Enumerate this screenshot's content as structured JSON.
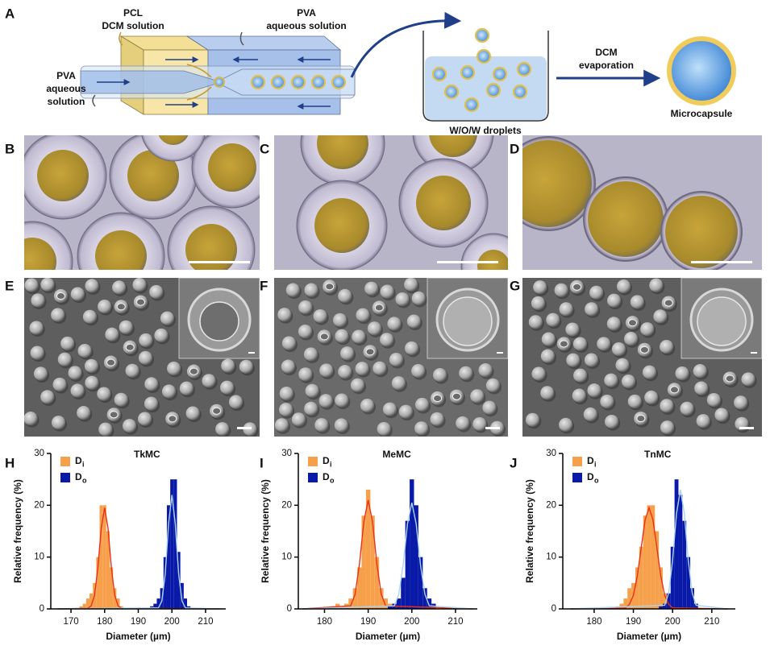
{
  "panel_labels": [
    "A",
    "B",
    "C",
    "D",
    "E",
    "F",
    "G",
    "H",
    "I",
    "J"
  ],
  "schematic": {
    "pcl_label": [
      "PCL",
      "DCM solution"
    ],
    "pva_top": [
      "PVA",
      "aqueous solution"
    ],
    "pva_left": [
      "PVA",
      "aqueous",
      "solution"
    ],
    "droplets": "W/O/W  droplets",
    "evaporation": [
      "DCM",
      "evaporation"
    ],
    "product": "Microcapsule"
  },
  "chart_data": [
    {
      "type": "histogram",
      "title": "TkMC",
      "x_label": "Diameter (µm)",
      "y_label": "Relative frequency (%)",
      "xlim": [
        164,
        216
      ],
      "xticks": [
        170,
        180,
        190,
        200,
        210
      ],
      "ylim": [
        0,
        30
      ],
      "yticks": [
        0,
        10,
        20,
        30
      ],
      "series": [
        {
          "name": "D",
          "name_sub": "i",
          "color": "#f7a04b",
          "bins": [
            172.5,
            173.5,
            174.5,
            175.5,
            176.5,
            177.5,
            178.5,
            179.5,
            180.5,
            181.5,
            182.5,
            183.5,
            184.5,
            185.5
          ],
          "values": [
            0.5,
            1,
            2,
            3,
            5,
            10,
            20,
            20,
            15,
            8,
            4,
            2,
            0.5
          ],
          "fit": {
            "color": "#e8311a",
            "x": [
              166,
              175,
              176,
              177,
              178,
              179,
              180,
              181,
              182,
              183,
              184,
              185,
              214
            ],
            "values": [
              0,
              0.1,
              0.6,
              2.6,
              8.0,
              15.6,
              19.5,
              15.6,
              8.0,
              2.6,
              0.6,
              0.1,
              0
            ]
          }
        },
        {
          "name": "D",
          "name_sub": "o",
          "color": "#0a1aa8",
          "bins": [
            193.5,
            194.5,
            195.5,
            196.5,
            197.5,
            198.5,
            199.5,
            200.5,
            201.5,
            202.5,
            203.5,
            204.5,
            205.5
          ],
          "values": [
            0.5,
            1,
            2,
            4,
            10,
            20,
            25,
            25,
            11,
            5,
            2,
            0.5
          ],
          "fit": {
            "color": "#a9d5f0",
            "x": [
              166,
              196,
              197,
              198,
              199,
              200,
              201,
              202,
              203,
              204,
              215
            ],
            "values": [
              0,
              0.2,
              1.5,
              6.7,
              16.4,
              22,
              16.4,
              6.7,
              1.5,
              0.2,
              0
            ]
          }
        }
      ]
    },
    {
      "type": "histogram",
      "title": "MeMC",
      "x_label": "Diameter (µm)",
      "y_label": "Relative frequency (%)",
      "xlim": [
        174,
        215
      ],
      "xticks": [
        180,
        190,
        200,
        210
      ],
      "ylim": [
        0,
        30
      ],
      "yticks": [
        0,
        10,
        20,
        30
      ],
      "series": [
        {
          "name": "D",
          "name_sub": "i",
          "color": "#f7a04b",
          "bins": [
            181.5,
            182.5,
            183.5,
            184.5,
            185.5,
            186.5,
            187.5,
            188.5,
            189.5,
            190.5,
            191.5,
            192.5,
            193.5,
            194.5,
            195.5
          ],
          "values": [
            0.5,
            1,
            0.5,
            1,
            2,
            4,
            8,
            18,
            23,
            18,
            10,
            4,
            2,
            1
          ],
          "fit": {
            "color": "#e8311a",
            "x": [
              175,
              186,
              187,
              188,
              189,
              190,
              191,
              192,
              193,
              194,
              214
            ],
            "values": [
              0,
              0.6,
              2.8,
              8.6,
              16.8,
              21,
              16.8,
              8.6,
              2.8,
              0.6,
              0
            ]
          }
        },
        {
          "name": "D",
          "name_sub": "o",
          "color": "#0a1aa8",
          "bins": [
            194.5,
            195.5,
            196.5,
            197.5,
            198.5,
            199.5,
            200.5,
            201.5,
            202.5,
            203.5,
            204.5,
            205.5
          ],
          "values": [
            0.5,
            1,
            2,
            6,
            17,
            25,
            20,
            10,
            4,
            2,
            1
          ],
          "fit": {
            "color": "#a9d5f0",
            "x": [
              175,
              196,
              197,
              198,
              199,
              200,
              201,
              202,
              203,
              204,
              214
            ],
            "values": [
              0,
              0.6,
              2.8,
              8.4,
              16.4,
              20.5,
              16.4,
              8.4,
              2.8,
              0.6,
              0
            ]
          }
        }
      ]
    },
    {
      "type": "histogram",
      "title": "TnMC",
      "x_label": "Diameter (µm)",
      "y_label": "Relative frequency (%)",
      "xlim": [
        172,
        216
      ],
      "xticks": [
        180,
        190,
        200,
        210
      ],
      "ylim": [
        0,
        30
      ],
      "yticks": [
        0,
        10,
        20,
        30
      ],
      "series": [
        {
          "name": "D",
          "name_sub": "i",
          "color": "#f7a04b",
          "bins": [
            185.5,
            186.5,
            187.5,
            188.5,
            189.5,
            190.5,
            191.5,
            192.5,
            193.5,
            194.5,
            195.5,
            196.5,
            197.5,
            198.5,
            199.5
          ],
          "values": [
            0.5,
            1,
            2,
            4,
            5,
            8,
            12,
            18,
            20,
            20,
            15,
            8,
            3,
            1
          ],
          "fit": {
            "color": "#e8311a",
            "x": [
              174,
              188,
              189,
              190,
              191,
              192,
              193,
              194,
              195,
              196,
              197,
              198,
              199,
              200,
              214
            ],
            "values": [
              0,
              0.2,
              0.9,
              2.6,
              6.3,
              11.8,
              17.2,
              19.5,
              17.2,
              11.8,
              6.3,
              2.6,
              0.9,
              0.2,
              0
            ]
          }
        },
        {
          "name": "D",
          "name_sub": "o",
          "color": "#0a1aa8",
          "bins": [
            196.5,
            197.5,
            198.5,
            199.5,
            200.5,
            201.5,
            202.5,
            203.5,
            204.5,
            205.5,
            206.5
          ],
          "values": [
            0.5,
            1,
            3,
            12,
            25,
            22,
            17,
            10,
            4,
            1
          ],
          "fit": {
            "color": "#a9d5f0",
            "x": [
              174,
              198,
              199,
              200,
              201,
              202,
              203,
              204,
              205,
              206,
              214
            ],
            "values": [
              0,
              0.7,
              3.1,
              9.4,
              18.4,
              23,
              18.4,
              9.4,
              3.1,
              0.7,
              0
            ]
          }
        }
      ]
    }
  ]
}
